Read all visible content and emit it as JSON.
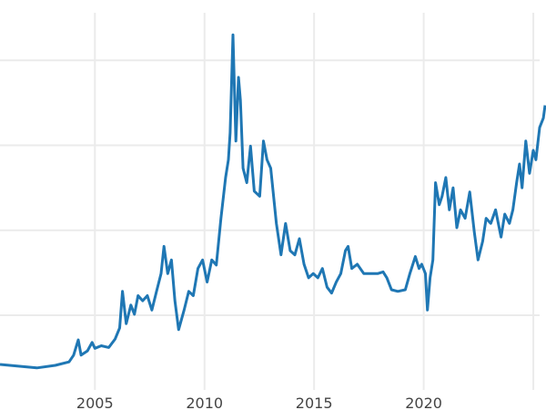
{
  "chart_data": {
    "type": "line",
    "title": "",
    "xlabel": "",
    "ylabel": "",
    "xlim": [
      2000.67,
      2025.58
    ],
    "ylim": [
      1.2,
      47.1
    ],
    "x_ticks": [
      2005,
      2010,
      2015,
      2020,
      2025
    ],
    "x_tick_labels": [
      "2005",
      "2010",
      "2015",
      "2020",
      ""
    ],
    "y_gridlines": [
      10,
      20,
      30,
      40
    ],
    "grid": true,
    "line_color": "#1f77b4",
    "grid_color": "#ebebeb",
    "series": [
      {
        "x": [
          2000.67,
          2001.51,
          2002.35,
          2003.19,
          2003.82,
          2004.03,
          2004.24,
          2004.37,
          2004.66,
          2004.87,
          2005.0,
          2005.29,
          2005.63,
          2005.92,
          2006.13,
          2006.26,
          2006.43,
          2006.64,
          2006.8,
          2006.97,
          2007.18,
          2007.39,
          2007.6,
          2007.81,
          2008.02,
          2008.15,
          2008.32,
          2008.49,
          2008.65,
          2008.82,
          2009.07,
          2009.28,
          2009.49,
          2009.7,
          2009.91,
          2010.12,
          2010.33,
          2010.54,
          2010.75,
          2010.96,
          2011.09,
          2011.17,
          2011.3,
          2011.43,
          2011.55,
          2011.64,
          2011.76,
          2011.93,
          2012.1,
          2012.27,
          2012.52,
          2012.69,
          2012.85,
          2013.02,
          2013.28,
          2013.49,
          2013.7,
          2013.91,
          2014.12,
          2014.33,
          2014.54,
          2014.75,
          2014.96,
          2015.17,
          2015.38,
          2015.59,
          2015.8,
          2016.01,
          2016.22,
          2016.43,
          2016.55,
          2016.72,
          2016.97,
          2017.27,
          2017.56,
          2017.9,
          2018.15,
          2018.32,
          2018.53,
          2018.82,
          2019.16,
          2019.37,
          2019.62,
          2019.79,
          2019.91,
          2020.08,
          2020.17,
          2020.29,
          2020.42,
          2020.54,
          2020.71,
          2020.84,
          2021.01,
          2021.17,
          2021.34,
          2021.51,
          2021.68,
          2021.89,
          2022.1,
          2022.31,
          2022.48,
          2022.69,
          2022.85,
          2023.06,
          2023.28,
          2023.53,
          2023.7,
          2023.91,
          2024.07,
          2024.24,
          2024.37,
          2024.49,
          2024.66,
          2024.83,
          2025.0,
          2025.12,
          2025.29,
          2025.46,
          2025.54
        ],
        "y": [
          4.2,
          4.0,
          3.8,
          4.1,
          4.5,
          5.3,
          7.1,
          5.3,
          5.8,
          6.8,
          6.1,
          6.4,
          6.2,
          7.2,
          8.5,
          12.8,
          9.0,
          11.2,
          10.1,
          12.3,
          11.7,
          12.3,
          10.6,
          12.8,
          14.9,
          18.1,
          14.9,
          16.5,
          11.7,
          8.3,
          10.6,
          12.8,
          12.3,
          15.5,
          16.5,
          13.9,
          16.5,
          15.9,
          21.4,
          26.2,
          28.3,
          31.5,
          43.0,
          30.5,
          38.0,
          35.3,
          27.3,
          25.6,
          29.9,
          24.6,
          24.0,
          30.5,
          28.3,
          27.3,
          20.8,
          17.1,
          20.8,
          17.6,
          17.1,
          19.0,
          16.0,
          14.4,
          14.9,
          14.4,
          15.5,
          13.3,
          12.6,
          13.9,
          14.9,
          17.6,
          18.1,
          15.5,
          16.0,
          14.9,
          14.9,
          14.9,
          15.1,
          14.4,
          13.0,
          12.8,
          13.0,
          14.9,
          16.9,
          15.5,
          16.0,
          14.9,
          10.6,
          14.4,
          16.5,
          25.6,
          23.0,
          24.0,
          26.2,
          22.4,
          25.0,
          20.3,
          22.4,
          21.4,
          24.5,
          19.8,
          16.5,
          18.7,
          21.4,
          20.8,
          22.4,
          19.2,
          21.9,
          20.8,
          22.4,
          25.6,
          27.8,
          25.0,
          30.5,
          26.7,
          29.4,
          28.3,
          32.1,
          33.2,
          34.7
        ]
      }
    ]
  }
}
